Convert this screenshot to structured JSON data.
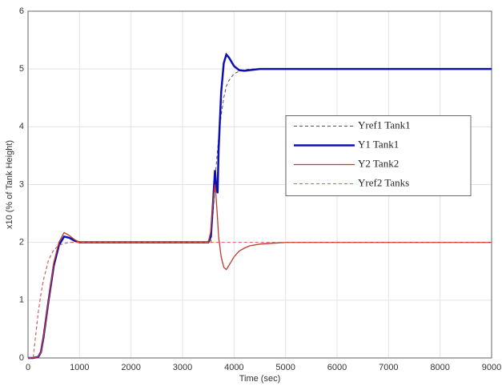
{
  "chart_data": {
    "type": "line",
    "xlabel": "Time (sec)",
    "ylabel": "x10 (% of Tank Height)",
    "x": [
      0,
      100,
      200,
      250,
      300,
      400,
      500,
      600,
      700,
      800,
      900,
      1000,
      1200,
      1500,
      2000,
      2500,
      3000,
      3500,
      3550,
      3600,
      3630,
      3650,
      3680,
      3700,
      3750,
      3800,
      3850,
      3900,
      4000,
      4100,
      4200,
      4300,
      4500,
      5000,
      6000,
      7000,
      8000,
      9000
    ],
    "series": [
      {
        "name": "Yref1 Tank1",
        "color": "#555555",
        "dashed": true,
        "width": 1,
        "values": [
          0,
          0,
          0.8,
          1.1,
          1.35,
          1.7,
          1.87,
          1.95,
          1.98,
          2,
          2,
          2,
          2,
          2,
          2,
          2,
          2,
          2,
          2,
          2.6,
          3.0,
          3.3,
          3.6,
          3.8,
          4.2,
          4.5,
          4.7,
          4.8,
          4.92,
          4.96,
          4.98,
          5,
          5,
          5,
          5,
          5,
          5,
          5
        ]
      },
      {
        "name": "Y1 Tank1",
        "color": "#1010b0",
        "dashed": false,
        "width": 2.5,
        "values": [
          0,
          0,
          0.02,
          0.1,
          0.35,
          1.0,
          1.6,
          1.95,
          2.1,
          2.08,
          2.03,
          2.0,
          2.0,
          2.0,
          2.0,
          2.0,
          2.0,
          2.0,
          2.1,
          2.8,
          3.25,
          3.0,
          2.85,
          3.6,
          4.6,
          5.1,
          5.25,
          5.2,
          5.05,
          4.98,
          4.97,
          4.98,
          5.0,
          5.0,
          5.0,
          5.0,
          5.0,
          5.0
        ]
      },
      {
        "name": "Y2 Tank2",
        "color": "#c0392b",
        "dashed": false,
        "width": 1.3,
        "values": [
          0,
          0,
          0.02,
          0.1,
          0.35,
          1.0,
          1.65,
          2.0,
          2.17,
          2.12,
          2.05,
          2.0,
          2.0,
          2.0,
          2.0,
          2.0,
          2.0,
          2.0,
          2.2,
          2.8,
          3.0,
          2.8,
          2.4,
          2.1,
          1.75,
          1.57,
          1.53,
          1.6,
          1.75,
          1.85,
          1.9,
          1.94,
          1.97,
          2.0,
          2.0,
          2.0,
          2.0,
          2.0
        ]
      },
      {
        "name": "Yref2 Tanks",
        "color": "#e06060",
        "dashed": true,
        "width": 1,
        "values": [
          0,
          0,
          0.8,
          1.1,
          1.35,
          1.7,
          1.87,
          1.95,
          1.98,
          2,
          2,
          2,
          2,
          2,
          2,
          2,
          2,
          2,
          2,
          2,
          2,
          2,
          2,
          2,
          2,
          2,
          2,
          2,
          2,
          2,
          2,
          2,
          2,
          2,
          2,
          2,
          2,
          2
        ]
      }
    ],
    "xlim": [
      0,
      9000
    ],
    "xticks": [
      0,
      1000,
      2000,
      3000,
      4000,
      5000,
      6000,
      7000,
      8000,
      9000
    ],
    "ylim": [
      0,
      6
    ],
    "yticks": [
      0,
      1,
      2,
      3,
      4,
      5,
      6
    ],
    "grid": true,
    "legend": "center right"
  }
}
